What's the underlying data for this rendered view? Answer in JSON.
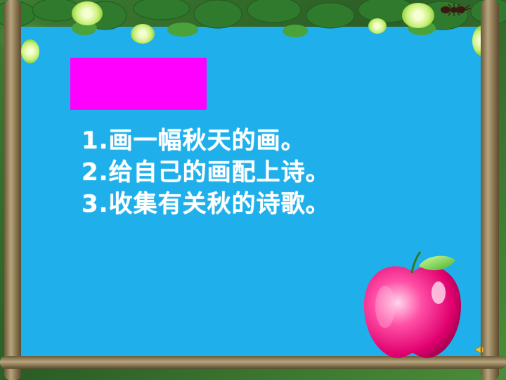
{
  "slide": {
    "background_color": "#1fb0ec",
    "badge_color": "#ff00ff",
    "text_color": "#ffffff",
    "items": [
      "1.画一幅秋天的画。",
      "2.给自己的画配上诗。",
      "3.收集有关秋的诗歌。"
    ],
    "decorations": [
      "vine-frame",
      "leaf-border",
      "apple-icon",
      "speaker-icon",
      "ant-icon"
    ]
  }
}
